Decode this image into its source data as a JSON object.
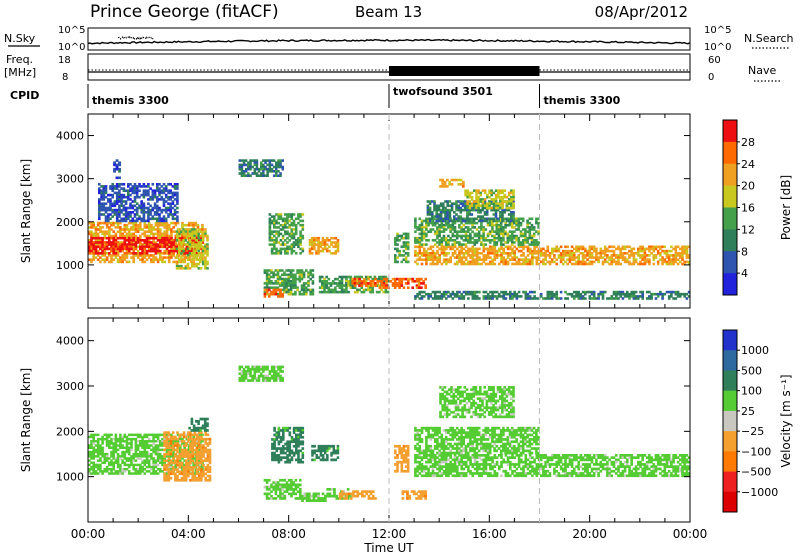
{
  "header": {
    "station": "Prince George (fitACF)",
    "beam": "Beam 13",
    "date": "08/Apr/2012"
  },
  "nsky_panel": {
    "left_label": "N.Sky",
    "right_label": "N.Search",
    "left_ticks": [
      "10^5",
      "10^0"
    ],
    "right_ticks": [
      "10^5",
      "10^0"
    ]
  },
  "freq_panel": {
    "left_label_1": "Freq.",
    "left_label_2": "[MHz]",
    "right_label": "Nave",
    "left_ticks": [
      "18",
      "8"
    ],
    "right_ticks": [
      "60",
      "0"
    ]
  },
  "cpid_panel": {
    "label": "CPID",
    "segments": [
      {
        "name": "themis 3300",
        "start": 0,
        "end": 12
      },
      {
        "name": "twofsound 3501",
        "start": 12,
        "end": 18
      },
      {
        "name": "themis 3300",
        "start": 18,
        "end": 24
      }
    ]
  },
  "chart_data": [
    {
      "type": "heatmap",
      "title": "",
      "xlabel": "",
      "ylabel": "Slant Range [km]",
      "xlim": [
        0,
        24
      ],
      "ylim": [
        0,
        4500
      ],
      "yticks": [
        "1000",
        "2000",
        "3000",
        "4000"
      ],
      "colorbar": {
        "label": "Power [dB]",
        "range": [
          0,
          32
        ],
        "ticks": [
          "4",
          "8",
          "12",
          "16",
          "20",
          "24",
          "28"
        ],
        "colors": [
          "#2222dd",
          "#2f55b0",
          "#2f7f5a",
          "#44a04a",
          "#c8c81e",
          "#f0a020",
          "#ff6a00",
          "#ee1010"
        ]
      },
      "regions": [
        {
          "t0": 0.0,
          "t1": 4.6,
          "r0": 1050,
          "r1": 2000,
          "level": 20
        },
        {
          "t0": 0.0,
          "t1": 4.6,
          "r0": 1250,
          "r1": 1650,
          "level": 28
        },
        {
          "t0": 0.4,
          "t1": 3.6,
          "r0": 2000,
          "r1": 2900,
          "level": 6
        },
        {
          "t0": 1.0,
          "t1": 1.3,
          "r0": 3000,
          "r1": 3450,
          "level": 6
        },
        {
          "t0": 3.5,
          "t1": 4.8,
          "r0": 900,
          "r1": 1850,
          "level": 18
        },
        {
          "t0": 6.0,
          "t1": 7.8,
          "r0": 3050,
          "r1": 3450,
          "level": 8
        },
        {
          "t0": 7.2,
          "t1": 8.6,
          "r0": 1250,
          "r1": 2200,
          "level": 14
        },
        {
          "t0": 8.8,
          "t1": 10.0,
          "r0": 1250,
          "r1": 1650,
          "level": 20
        },
        {
          "t0": 7.0,
          "t1": 9.0,
          "r0": 300,
          "r1": 900,
          "level": 12
        },
        {
          "t0": 7.0,
          "t1": 7.8,
          "r0": 250,
          "r1": 450,
          "level": 26
        },
        {
          "t0": 9.2,
          "t1": 12.0,
          "r0": 350,
          "r1": 750,
          "level": 14
        },
        {
          "t0": 10.5,
          "t1": 11.5,
          "r0": 500,
          "r1": 700,
          "level": 26
        },
        {
          "t0": 11.5,
          "t1": 13.5,
          "r0": 450,
          "r1": 700,
          "level": 26
        },
        {
          "t0": 12.2,
          "t1": 12.8,
          "r0": 1050,
          "r1": 1750,
          "level": 14
        },
        {
          "t0": 13.0,
          "t1": 24.0,
          "r0": 1000,
          "r1": 1450,
          "level": 22
        },
        {
          "t0": 13.0,
          "t1": 18.0,
          "r0": 1450,
          "r1": 2100,
          "level": 12
        },
        {
          "t0": 13.5,
          "t1": 17.0,
          "r0": 2000,
          "r1": 2500,
          "level": 10
        },
        {
          "t0": 14.0,
          "t1": 15.0,
          "r0": 2800,
          "r1": 3000,
          "level": 20
        },
        {
          "t0": 15.0,
          "t1": 17.0,
          "r0": 2300,
          "r1": 2750,
          "level": 16
        },
        {
          "t0": 13.0,
          "t1": 24.0,
          "r0": 200,
          "r1": 400,
          "level": 8
        }
      ]
    },
    {
      "type": "heatmap",
      "title": "",
      "xlabel": "Time UT",
      "ylabel": "Slant Range [km]",
      "xlim": [
        0,
        24
      ],
      "ylim": [
        0,
        4500
      ],
      "xticks": [
        "00:00",
        "04:00",
        "08:00",
        "12:00",
        "16:00",
        "20:00",
        "00:00"
      ],
      "yticks": [
        "1000",
        "2000",
        "3000",
        "4000"
      ],
      "colorbar": {
        "label": "Velocity [m s⁻¹]",
        "ticks": [
          "1000",
          "500",
          "100",
          "25",
          "−25",
          "−100",
          "−500",
          "−1000"
        ],
        "colors": [
          "#2233cc",
          "#2e6aa0",
          "#2f7f5a",
          "#55cc33",
          "#c8c8c0",
          "#f4a030",
          "#ff7a00",
          "#ee2020",
          "#dd0000"
        ]
      },
      "regions": [
        {
          "t0": 0.0,
          "t1": 4.6,
          "r0": 1050,
          "r1": 1950,
          "level": "25"
        },
        {
          "t0": 3.0,
          "t1": 4.9,
          "r0": 900,
          "r1": 2000,
          "level": "-100"
        },
        {
          "t0": 4.0,
          "t1": 4.8,
          "r0": 2000,
          "r1": 2300,
          "level": "100"
        },
        {
          "t0": 7.3,
          "t1": 8.6,
          "r0": 1300,
          "r1": 2100,
          "level": "100"
        },
        {
          "t0": 8.9,
          "t1": 10.0,
          "r0": 1350,
          "r1": 1700,
          "level": "100"
        },
        {
          "t0": 7.0,
          "t1": 8.5,
          "r0": 500,
          "r1": 950,
          "level": "25"
        },
        {
          "t0": 9.5,
          "t1": 10.5,
          "r0": 500,
          "r1": 750,
          "level": "25"
        },
        {
          "t0": 10.0,
          "t1": 11.5,
          "r0": 500,
          "r1": 700,
          "level": "-100"
        },
        {
          "t0": 8.5,
          "t1": 9.5,
          "r0": 450,
          "r1": 650,
          "level": "25"
        },
        {
          "t0": 12.5,
          "t1": 13.5,
          "r0": 500,
          "r1": 700,
          "level": "-100"
        },
        {
          "t0": 13.0,
          "t1": 24.0,
          "r0": 1000,
          "r1": 1500,
          "level": "25"
        },
        {
          "t0": 13.0,
          "t1": 18.0,
          "r0": 1500,
          "r1": 2100,
          "level": "25"
        },
        {
          "t0": 14.0,
          "t1": 17.0,
          "r0": 2300,
          "r1": 3000,
          "level": "25"
        },
        {
          "t0": 12.2,
          "t1": 12.8,
          "r0": 1100,
          "r1": 1700,
          "level": "-100"
        },
        {
          "t0": 6.0,
          "t1": 7.8,
          "r0": 3100,
          "r1": 3450,
          "level": "25"
        }
      ]
    }
  ],
  "legend_right": {
    "nsearch_style": "dotted",
    "nave_style": "dotted"
  }
}
